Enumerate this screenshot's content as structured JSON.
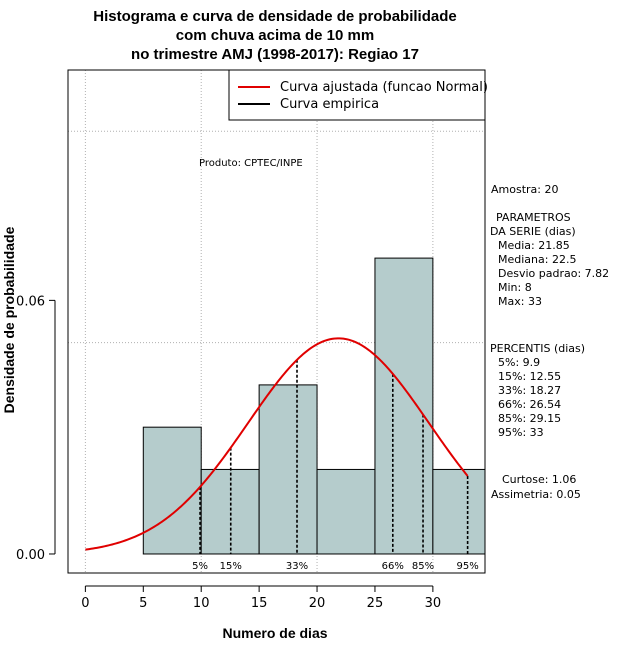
{
  "chart_data": {
    "type": "bar",
    "title_lines": [
      "Histograma e curva de densidade de probabilidade",
      "com chuva acima de 10 mm",
      "no trimestre AMJ (1998-2017): Regiao 17"
    ],
    "xlabel": "Numero de dias",
    "ylabel": "Densidade de probabilidade",
    "xlim": [
      -1.5,
      34.5
    ],
    "ylim": [
      -0.0045,
      0.1145
    ],
    "x_ticks": [
      "0",
      "5",
      "10",
      "15",
      "20",
      "25",
      "30"
    ],
    "y_ticks": [
      "0.00",
      "0.06"
    ],
    "grid": true,
    "bins": [
      {
        "start": 5,
        "end": 10,
        "density": 0.03
      },
      {
        "start": 10,
        "end": 15,
        "density": 0.02
      },
      {
        "start": 15,
        "end": 20,
        "density": 0.04
      },
      {
        "start": 20,
        "end": 25,
        "density": 0.02
      },
      {
        "start": 25,
        "end": 30,
        "density": 0.07
      },
      {
        "start": 30,
        "end": 35,
        "density": 0.02
      }
    ],
    "normal_curve": {
      "mean": 21.85,
      "sd": 7.82,
      "x_from": 0,
      "x_to": 33
    },
    "percentile_lines": [
      {
        "label": "5%",
        "value": 9.9
      },
      {
        "label": "15%",
        "value": 12.55
      },
      {
        "label": "33%",
        "value": 18.27
      },
      {
        "label": "66%",
        "value": 26.54
      },
      {
        "label": "85%",
        "value": 29.15
      },
      {
        "label": "95%",
        "value": 33
      }
    ],
    "legend": {
      "position": "top-right",
      "entries": [
        {
          "label": "Curva ajustada (funcao Normal)",
          "color": "#e00000"
        },
        {
          "label": "Curva empirica",
          "color": "#000000"
        }
      ]
    },
    "product_label": "Produto: CPTEC/INPE",
    "bar_color": "#b5cccc",
    "curve_color": "#e00000"
  },
  "stats": {
    "sample": "Amostra: 20",
    "params_title": "PARAMETROS",
    "params_subtitle": "DA SERIE (dias)",
    "params": [
      "Media: 21.85",
      "Mediana: 22.5",
      "Desvio padrao: 7.82",
      "Min: 8",
      "Max: 33"
    ],
    "percentiles_title": "PERCENTIS (dias)",
    "percentiles": [
      "5%: 9.9",
      "15%: 12.55",
      "33%: 18.27",
      "66%: 26.54",
      "85%: 29.15",
      "95%: 33"
    ],
    "kurtosis": "Curtose: 1.06",
    "skewness": "Assimetria: 0.05"
  }
}
